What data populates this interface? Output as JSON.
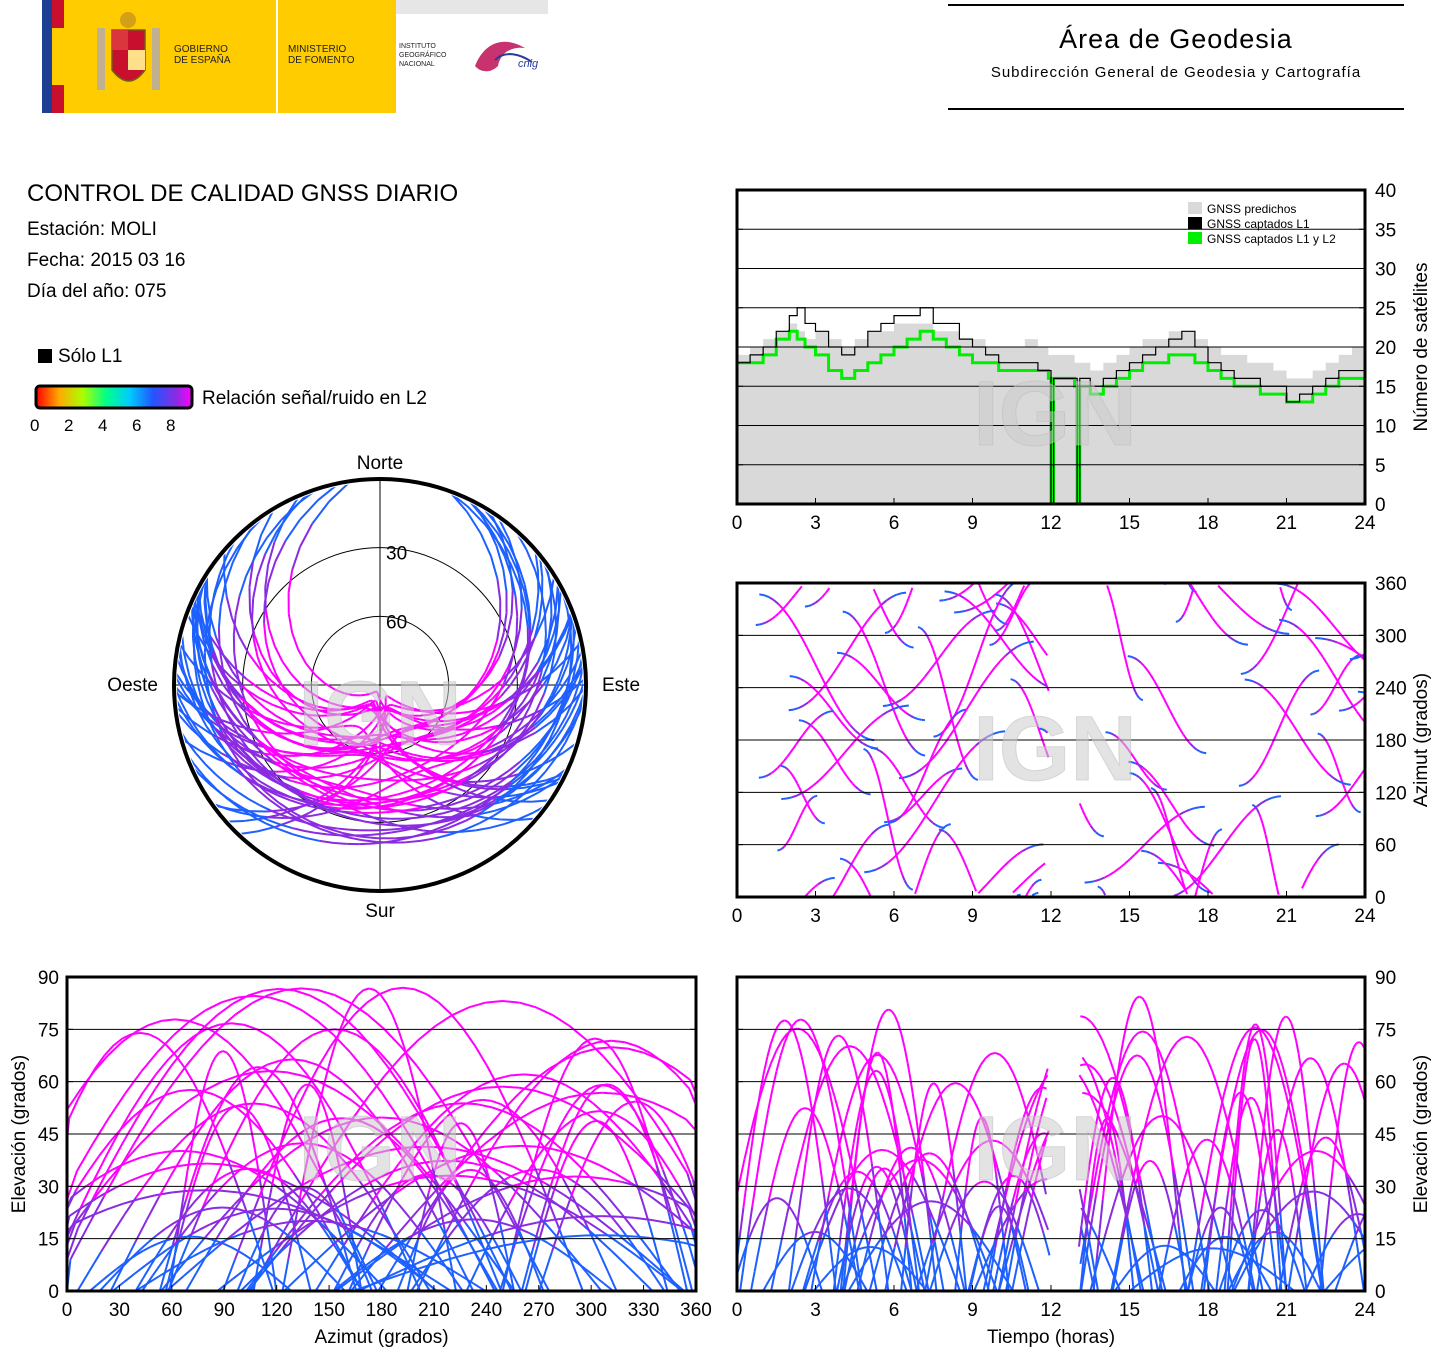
{
  "header": {
    "gov_line1": "GOBIERNO",
    "gov_line2": "DE ESPAÑA",
    "min_line1": "MINISTERIO",
    "min_line2": "DE FOMENTO",
    "ign_line1": "INSTITUTO",
    "ign_line2": "GEOGRÁFICO",
    "ign_line3": "NACIONAL",
    "cnig": "cnig",
    "area_title": "Área de Geodesia",
    "area_subtitle": "Subdirección General de Geodesia y Cartografía"
  },
  "report": {
    "title": "CONTROL DE CALIDAD GNSS DIARIO",
    "station": "Estación: MOLI",
    "date": "Fecha: 2015 03 16",
    "doy": "Día del año: 075"
  },
  "legend": {
    "l1_only": "Sólo L1",
    "snr_label": "Relación señal/ruido en L2",
    "snr_ticks": [
      "0",
      "2",
      "4",
      "6",
      "8"
    ]
  },
  "watermark": "IGN",
  "colors": {
    "predicted": "#d9d9d9",
    "l1": "#000000",
    "l1l2": "#00ee00",
    "snr_high": "#ff00ff",
    "snr_mid": "#8a2be2",
    "snr_low": "#1e60ff"
  },
  "chart_data": [
    {
      "type": "area",
      "id": "satellites",
      "ylabel": "Número de satélites",
      "xlim": [
        0,
        24
      ],
      "ylim": [
        0,
        40
      ],
      "xticks": [
        "0",
        "3",
        "6",
        "9",
        "12",
        "15",
        "18",
        "21",
        "24"
      ],
      "yticks": [
        "0",
        "5",
        "10",
        "15",
        "20",
        "25",
        "30",
        "35",
        "40"
      ],
      "grid": true,
      "legend_position": "top-right",
      "x": [
        0,
        0.5,
        1,
        1.5,
        2,
        2.3,
        2.6,
        3,
        3.5,
        4,
        4.5,
        5,
        5.5,
        6,
        6.5,
        7,
        7.5,
        8,
        8.5,
        9,
        9.5,
        10,
        10.5,
        11,
        11.5,
        11.9,
        12.0,
        12.1,
        12.5,
        12.9,
        13.0,
        13.1,
        13.5,
        14,
        14.5,
        15,
        15.5,
        16,
        16.5,
        17,
        17.5,
        18,
        18.5,
        19,
        19.5,
        20,
        20.5,
        21,
        21.5,
        22,
        22.5,
        23,
        23.5,
        24
      ],
      "series": [
        {
          "name": "GNSS predichos",
          "values": [
            19,
            20,
            21,
            22,
            23,
            22,
            21,
            22,
            21,
            20,
            21,
            22,
            22,
            23,
            23,
            23,
            22,
            22,
            21,
            21,
            20,
            20,
            20,
            21,
            20,
            19,
            19,
            19,
            19,
            18,
            18,
            18,
            17,
            18,
            19,
            20,
            21,
            21,
            22,
            22,
            21,
            20,
            19,
            19,
            18,
            18,
            17,
            16,
            16,
            17,
            18,
            19,
            20,
            20
          ]
        },
        {
          "name": "GNSS captados L1",
          "values": [
            18,
            19,
            20,
            22,
            24,
            25,
            23,
            22,
            20,
            19,
            20,
            22,
            23,
            24,
            24,
            25,
            23,
            23,
            21,
            20,
            19,
            18,
            18,
            18,
            17,
            17,
            0,
            16,
            16,
            16,
            0,
            16,
            15,
            16,
            17,
            18,
            19,
            20,
            21,
            22,
            20,
            18,
            17,
            16,
            16,
            15,
            15,
            13,
            14,
            15,
            16,
            17,
            17,
            18
          ]
        },
        {
          "name": "GNSS captados L1 y L2",
          "values": [
            18,
            18,
            19,
            21,
            22,
            21,
            20,
            19,
            17,
            16,
            17,
            18,
            19,
            20,
            21,
            22,
            21,
            20,
            19,
            18,
            18,
            17,
            17,
            17,
            17,
            16,
            0,
            16,
            16,
            15,
            0,
            15,
            14,
            15,
            16,
            17,
            18,
            18,
            19,
            19,
            18,
            17,
            16,
            15,
            15,
            14,
            14,
            13,
            13,
            14,
            15,
            16,
            16,
            17
          ]
        }
      ]
    },
    {
      "type": "scatter",
      "id": "skyplot",
      "labels": {
        "north": "Norte",
        "south": "Sur",
        "west": "Oeste",
        "east": "Este"
      },
      "rings": [
        "30",
        "60"
      ]
    },
    {
      "type": "scatter",
      "id": "azimuth_time",
      "ylabel": "Azimut (grados)",
      "xlim": [
        0,
        24
      ],
      "ylim": [
        0,
        360
      ],
      "xticks": [
        "0",
        "3",
        "6",
        "9",
        "12",
        "15",
        "18",
        "21",
        "24"
      ],
      "yticks": [
        "0",
        "60",
        "120",
        "180",
        "240",
        "300",
        "360"
      ]
    },
    {
      "type": "scatter",
      "id": "elevation_azimuth",
      "xlabel": "Azimut (grados)",
      "ylabel": "Elevación (grados)",
      "xlim": [
        0,
        360
      ],
      "ylim": [
        0,
        90
      ],
      "xticks": [
        "0",
        "30",
        "60",
        "90",
        "120",
        "150",
        "180",
        "210",
        "240",
        "270",
        "300",
        "330",
        "360"
      ],
      "yticks": [
        "0",
        "15",
        "30",
        "45",
        "60",
        "75",
        "90"
      ]
    },
    {
      "type": "scatter",
      "id": "elevation_time",
      "xlabel": "Tiempo (horas)",
      "ylabel": "Elevación (grados)",
      "xlim": [
        0,
        24
      ],
      "ylim": [
        0,
        90
      ],
      "xticks": [
        "0",
        "3",
        "6",
        "9",
        "12",
        "15",
        "18",
        "21",
        "24"
      ],
      "yticks": [
        "0",
        "15",
        "30",
        "45",
        "60",
        "75",
        "90"
      ]
    }
  ]
}
